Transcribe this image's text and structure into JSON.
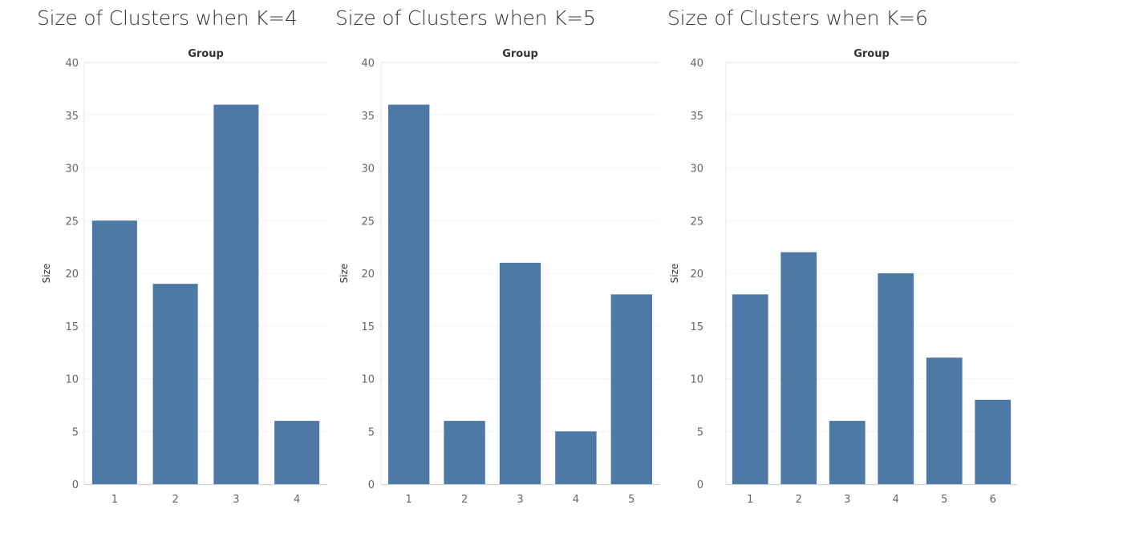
{
  "chart_data": [
    {
      "type": "bar",
      "title": "Size of Clusters when K=4",
      "header": "Group",
      "ylabel": "Size",
      "categories": [
        "1",
        "2",
        "3",
        "4"
      ],
      "values": [
        25,
        19,
        36,
        6
      ],
      "ylim": [
        0,
        40
      ],
      "yticks": [
        0,
        5,
        10,
        15,
        20,
        25,
        30,
        35,
        40
      ],
      "grid": true,
      "bar_color": "#4e79a7"
    },
    {
      "type": "bar",
      "title": "Size of Clusters when K=5",
      "header": "Group",
      "ylabel": "Size",
      "categories": [
        "1",
        "2",
        "3",
        "4",
        "5"
      ],
      "values": [
        36,
        6,
        21,
        5,
        18
      ],
      "ylim": [
        0,
        40
      ],
      "yticks": [
        0,
        5,
        10,
        15,
        20,
        25,
        30,
        35,
        40
      ],
      "grid": true,
      "bar_color": "#4e79a7"
    },
    {
      "type": "bar",
      "title": "Size of Clusters when K=6",
      "header": "Group",
      "ylabel": "Size",
      "categories": [
        "1",
        "2",
        "3",
        "4",
        "5",
        "6"
      ],
      "values": [
        18,
        22,
        6,
        20,
        12,
        8
      ],
      "ylim": [
        0,
        40
      ],
      "yticks": [
        0,
        5,
        10,
        15,
        20,
        25,
        30,
        35,
        40
      ],
      "grid": true,
      "bar_color": "#4e79a7"
    }
  ]
}
